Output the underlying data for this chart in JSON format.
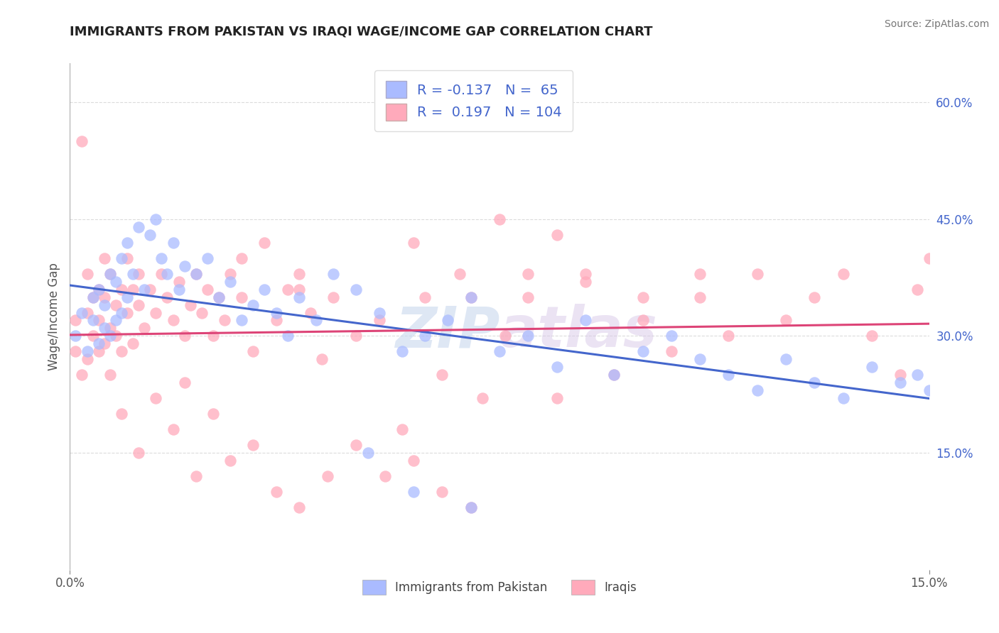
{
  "title": "IMMIGRANTS FROM PAKISTAN VS IRAQI WAGE/INCOME GAP CORRELATION CHART",
  "source": "Source: ZipAtlas.com",
  "ylabel": "Wage/Income Gap",
  "xlim": [
    0.0,
    0.15
  ],
  "ylim": [
    0.0,
    0.65
  ],
  "x_tick_labels": [
    "0.0%",
    "15.0%"
  ],
  "y_ticks_right": [
    0.15,
    0.3,
    0.45,
    0.6
  ],
  "y_tick_labels_right": [
    "15.0%",
    "30.0%",
    "45.0%",
    "60.0%"
  ],
  "pakistan_color": "#aabbff",
  "iraq_color": "#ffaabb",
  "pakistan_line_color": "#4466cc",
  "iraq_line_color": "#dd4477",
  "pakistan_R": -0.137,
  "pakistan_N": 65,
  "iraq_R": 0.197,
  "iraq_N": 104,
  "legend_label_pakistan": "Immigrants from Pakistan",
  "legend_label_iraq": "Iraqis",
  "watermark_zip": "ZIP",
  "watermark_atlas": "atlas",
  "background_color": "#ffffff",
  "grid_color": "#cccccc",
  "pakistan_x": [
    0.001,
    0.002,
    0.003,
    0.004,
    0.004,
    0.005,
    0.005,
    0.006,
    0.006,
    0.007,
    0.007,
    0.008,
    0.008,
    0.009,
    0.009,
    0.01,
    0.01,
    0.011,
    0.012,
    0.013,
    0.014,
    0.015,
    0.016,
    0.017,
    0.018,
    0.019,
    0.02,
    0.022,
    0.024,
    0.026,
    0.028,
    0.03,
    0.032,
    0.034,
    0.036,
    0.038,
    0.04,
    0.043,
    0.046,
    0.05,
    0.054,
    0.058,
    0.062,
    0.066,
    0.07,
    0.075,
    0.08,
    0.085,
    0.09,
    0.095,
    0.1,
    0.105,
    0.11,
    0.115,
    0.12,
    0.125,
    0.13,
    0.135,
    0.14,
    0.145,
    0.148,
    0.15,
    0.052,
    0.06,
    0.07
  ],
  "pakistan_y": [
    0.3,
    0.33,
    0.28,
    0.32,
    0.35,
    0.29,
    0.36,
    0.31,
    0.34,
    0.3,
    0.38,
    0.32,
    0.37,
    0.33,
    0.4,
    0.35,
    0.42,
    0.38,
    0.44,
    0.36,
    0.43,
    0.45,
    0.4,
    0.38,
    0.42,
    0.36,
    0.39,
    0.38,
    0.4,
    0.35,
    0.37,
    0.32,
    0.34,
    0.36,
    0.33,
    0.3,
    0.35,
    0.32,
    0.38,
    0.36,
    0.33,
    0.28,
    0.3,
    0.32,
    0.35,
    0.28,
    0.3,
    0.26,
    0.32,
    0.25,
    0.28,
    0.3,
    0.27,
    0.25,
    0.23,
    0.27,
    0.24,
    0.22,
    0.26,
    0.24,
    0.25,
    0.23,
    0.15,
    0.1,
    0.08
  ],
  "iraq_x": [
    0.001,
    0.001,
    0.002,
    0.002,
    0.003,
    0.003,
    0.003,
    0.004,
    0.004,
    0.005,
    0.005,
    0.005,
    0.006,
    0.006,
    0.006,
    0.007,
    0.007,
    0.008,
    0.008,
    0.009,
    0.009,
    0.01,
    0.01,
    0.011,
    0.011,
    0.012,
    0.012,
    0.013,
    0.014,
    0.015,
    0.016,
    0.017,
    0.018,
    0.019,
    0.02,
    0.021,
    0.022,
    0.023,
    0.024,
    0.025,
    0.026,
    0.027,
    0.028,
    0.03,
    0.032,
    0.034,
    0.036,
    0.038,
    0.04,
    0.042,
    0.044,
    0.046,
    0.05,
    0.054,
    0.058,
    0.062,
    0.065,
    0.068,
    0.072,
    0.076,
    0.08,
    0.085,
    0.09,
    0.095,
    0.1,
    0.105,
    0.11,
    0.115,
    0.12,
    0.125,
    0.13,
    0.135,
    0.14,
    0.145,
    0.148,
    0.15,
    0.007,
    0.009,
    0.012,
    0.015,
    0.018,
    0.02,
    0.022,
    0.025,
    0.028,
    0.032,
    0.036,
    0.04,
    0.045,
    0.05,
    0.055,
    0.06,
    0.065,
    0.07,
    0.075,
    0.08,
    0.06,
    0.04,
    0.03,
    0.07,
    0.085,
    0.09,
    0.1,
    0.11
  ],
  "iraq_y": [
    0.28,
    0.32,
    0.55,
    0.25,
    0.33,
    0.38,
    0.27,
    0.35,
    0.3,
    0.36,
    0.28,
    0.32,
    0.4,
    0.29,
    0.35,
    0.31,
    0.38,
    0.34,
    0.3,
    0.36,
    0.28,
    0.33,
    0.4,
    0.36,
    0.29,
    0.34,
    0.38,
    0.31,
    0.36,
    0.33,
    0.38,
    0.35,
    0.32,
    0.37,
    0.3,
    0.34,
    0.38,
    0.33,
    0.36,
    0.3,
    0.35,
    0.32,
    0.38,
    0.35,
    0.28,
    0.42,
    0.32,
    0.36,
    0.38,
    0.33,
    0.27,
    0.35,
    0.3,
    0.32,
    0.18,
    0.35,
    0.25,
    0.38,
    0.22,
    0.3,
    0.35,
    0.22,
    0.38,
    0.25,
    0.32,
    0.28,
    0.35,
    0.3,
    0.38,
    0.32,
    0.35,
    0.38,
    0.3,
    0.25,
    0.36,
    0.4,
    0.25,
    0.2,
    0.15,
    0.22,
    0.18,
    0.24,
    0.12,
    0.2,
    0.14,
    0.16,
    0.1,
    0.08,
    0.12,
    0.16,
    0.12,
    0.14,
    0.1,
    0.08,
    0.45,
    0.38,
    0.42,
    0.36,
    0.4,
    0.35,
    0.43,
    0.37,
    0.35,
    0.38
  ]
}
